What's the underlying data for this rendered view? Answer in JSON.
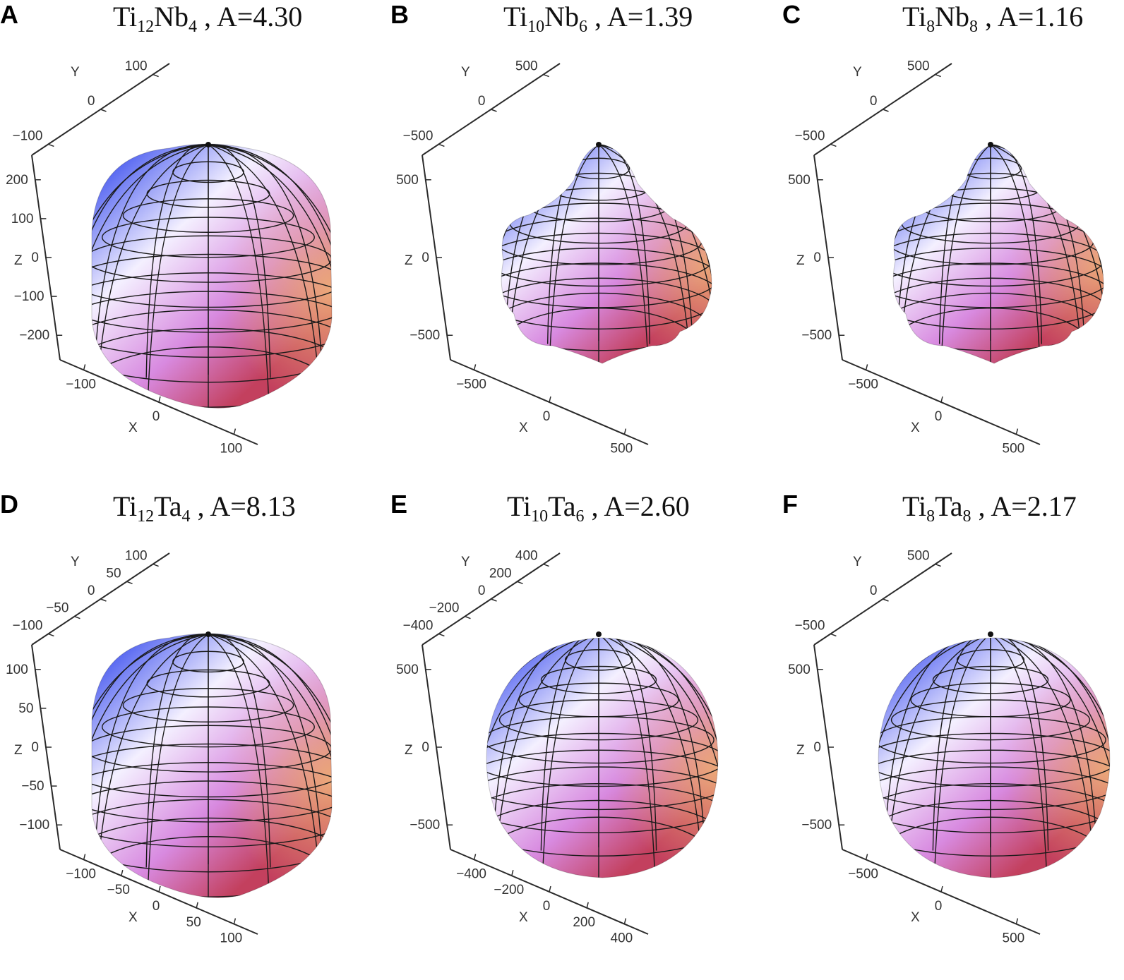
{
  "panels": [
    {
      "letter": "A",
      "base": "Ti",
      "n1": "12",
      "el": "Nb",
      "n2": "4",
      "suffix": " , A=4.30",
      "shape": "cube",
      "ticks": {
        "y": [
          "100",
          "0",
          "−100"
        ],
        "z": [
          "200",
          "100",
          "0",
          "−100",
          "−200"
        ],
        "x": [
          "−100",
          "0",
          "100"
        ]
      },
      "axis": {
        "x": "X",
        "y": "Y",
        "z": "Z"
      }
    },
    {
      "letter": "B",
      "base": "Ti",
      "n1": "10",
      "el": "Nb",
      "n2": "6",
      "suffix": " , A=1.39",
      "shape": "star",
      "ticks": {
        "y": [
          "500",
          "0",
          "−500"
        ],
        "z": [
          "500",
          "0",
          "−500"
        ],
        "x": [
          "−500",
          "0",
          "500"
        ]
      },
      "axis": {
        "x": "X",
        "y": "Y",
        "z": "Z"
      }
    },
    {
      "letter": "C",
      "base": "Ti",
      "n1": "8",
      "el": "Nb",
      "n2": "8",
      "suffix": " , A=1.16",
      "shape": "star",
      "ticks": {
        "y": [
          "500",
          "0",
          "−500"
        ],
        "z": [
          "500",
          "0",
          "−500"
        ],
        "x": [
          "−500",
          "0",
          "500"
        ]
      },
      "axis": {
        "x": "X",
        "y": "Y",
        "z": "Z"
      }
    },
    {
      "letter": "D",
      "base": "Ti",
      "n1": "12",
      "el": "Ta",
      "n2": "4",
      "suffix": " , A=8.13",
      "shape": "cube",
      "ticks": {
        "y": [
          "100",
          "50",
          "0",
          "−50",
          "−100"
        ],
        "z": [
          "100",
          "50",
          "0",
          "−50",
          "−100"
        ],
        "x": [
          "−100",
          "−50",
          "0",
          "50",
          "100"
        ]
      },
      "axis": {
        "x": "X",
        "y": "Y",
        "z": "Z"
      }
    },
    {
      "letter": "E",
      "base": "Ti",
      "n1": "10",
      "el": "Ta",
      "n2": "6",
      "suffix": " , A=2.60",
      "shape": "sphere",
      "ticks": {
        "y": [
          "400",
          "200",
          "0",
          "−200",
          "−400"
        ],
        "z": [
          "500",
          "0",
          "−500"
        ],
        "x": [
          "−400",
          "−200",
          "0",
          "200",
          "400"
        ]
      },
      "axis": {
        "x": "X",
        "y": "Y",
        "z": "Z"
      }
    },
    {
      "letter": "F",
      "base": "Ti",
      "n1": "8",
      "el": "Ta",
      "n2": "8",
      "suffix": " , A=2.17",
      "shape": "sphere",
      "ticks": {
        "y": [
          "500",
          "0",
          "−500"
        ],
        "z": [
          "500",
          "0",
          "−500"
        ],
        "x": [
          "−500",
          "0",
          "500"
        ]
      },
      "axis": {
        "x": "X",
        "y": "Y",
        "z": "Z"
      }
    }
  ],
  "colors": {
    "blue": "#4a5cf0",
    "light": "#f4f0ff",
    "pink": "#d88ae0",
    "red": "#c3405e",
    "orange": "#f2b878",
    "mesh": "#1a1a1a",
    "axis": "#2b2b2b"
  }
}
